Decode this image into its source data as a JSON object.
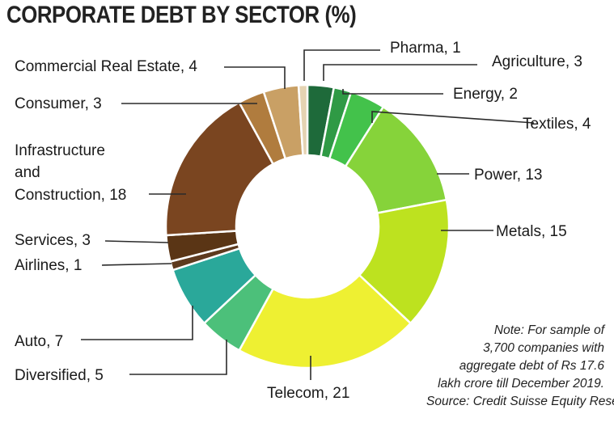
{
  "title": "CORPORATE DEBT BY SECTOR (%)",
  "chart_data": {
    "type": "pie",
    "variant": "donut",
    "title": "CORPORATE DEBT BY SECTOR (%)",
    "slices": [
      {
        "label": "Agriculture",
        "value": 3,
        "color": "#1e6a3a"
      },
      {
        "label": "Energy",
        "value": 2,
        "color": "#2f9a45"
      },
      {
        "label": "Textiles",
        "value": 4,
        "color": "#43c24b"
      },
      {
        "label": "Power",
        "value": 13,
        "color": "#86d33a"
      },
      {
        "label": "Metals",
        "value": 15,
        "color": "#bde21f"
      },
      {
        "label": "Telecom",
        "value": 21,
        "color": "#eef032"
      },
      {
        "label": "Diversified",
        "value": 5,
        "color": "#4cc07a"
      },
      {
        "label": "Auto",
        "value": 7,
        "color": "#2aa89a"
      },
      {
        "label": "Airlines",
        "value": 1,
        "color": "#5e3a1e"
      },
      {
        "label": "Services",
        "value": 3,
        "color": "#5a3515"
      },
      {
        "label": "Infrastructure and Construction",
        "value": 18,
        "color": "#7a4520"
      },
      {
        "label": "Consumer",
        "value": 3,
        "color": "#b07c3e"
      },
      {
        "label": "Commercial Real Estate",
        "value": 4,
        "color": "#c9a065"
      },
      {
        "label": "Pharma",
        "value": 1,
        "color": "#e5d3b2"
      }
    ],
    "legend": "none",
    "labels_placement": "outside with leader lines"
  },
  "labels": {
    "agriculture": "Agriculture, 3",
    "energy": "Energy, 2",
    "textiles": "Textiles, 4",
    "power": "Power, 13",
    "metals": "Metals, 15",
    "telecom": "Telecom, 21",
    "diversified": "Diversified, 5",
    "auto": "Auto, 7",
    "airlines": "Airlines, 1",
    "services": "Services, 3",
    "infra_line1": "Infrastructure",
    "infra_line2": "and",
    "infra_line3": "Construction, 18",
    "consumer": "Consumer, 3",
    "cre": "Commercial Real Estate, 4",
    "pharma": "Pharma, 1"
  },
  "note": {
    "line1": "Note: For sample of",
    "line2": "3,700 companies with",
    "line3": "aggregate debt of Rs 17.6",
    "line4": "lakh crore till December 2019.",
    "line5": "Source: Credit Suisse Equity Research"
  }
}
